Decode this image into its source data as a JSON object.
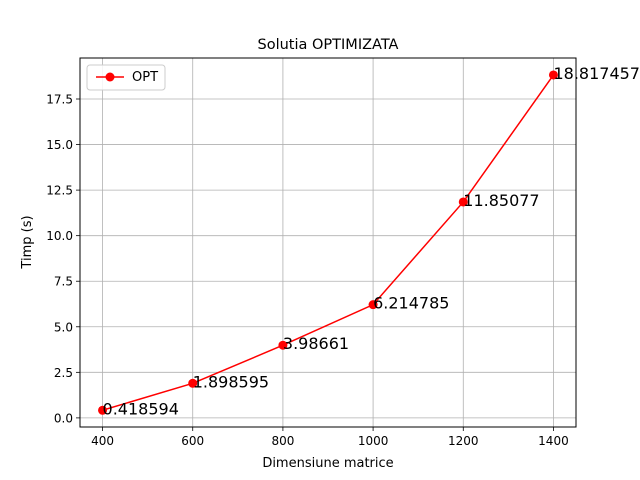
{
  "chart_data": {
    "type": "line",
    "title": "Solutia OPTIMIZATA",
    "xlabel": "Dimensiune matrice",
    "ylabel": "Timp (s)",
    "x": [
      400,
      600,
      800,
      1000,
      1200,
      1400
    ],
    "xlim": [
      350,
      1450
    ],
    "ylim": [
      -0.5,
      19.75
    ],
    "xticks": [
      400,
      600,
      800,
      1000,
      1200,
      1400
    ],
    "xtick_labels": [
      "400",
      "600",
      "800",
      "1000",
      "1200",
      "1400"
    ],
    "yticks": [
      0,
      2.5,
      5,
      7.5,
      10,
      12.5,
      15,
      17.5
    ],
    "ytick_labels": [
      "0.0",
      "2.5",
      "5.0",
      "7.5",
      "10.0",
      "12.5",
      "15.0",
      "17.5"
    ],
    "grid": true,
    "legend_position": "upper-left",
    "series": [
      {
        "name": "OPT",
        "color": "#ff0000",
        "marker": "circle",
        "values": [
          0.418594,
          1.898595,
          3.98661,
          6.214785,
          11.85077,
          18.817457
        ],
        "data_labels": [
          "0.418594",
          "1.898595",
          "3.98661",
          "6.214785",
          "11.85077",
          "18.817457"
        ]
      }
    ]
  }
}
